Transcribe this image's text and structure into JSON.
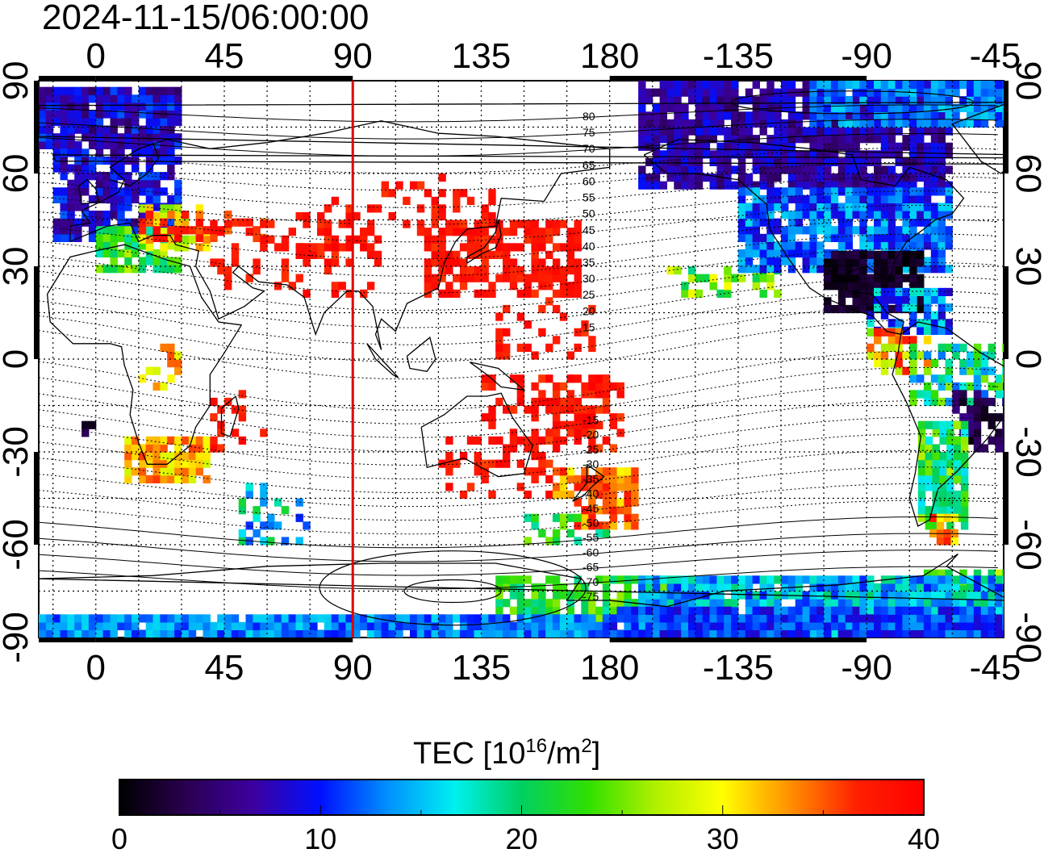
{
  "timestamp": "2024-11-15/06:00:00",
  "axes": {
    "top_lon_ticks": [
      "0",
      "45",
      "90",
      "135",
      "180",
      "-135",
      "-90",
      "-45"
    ],
    "bottom_lon_ticks": [
      "0",
      "45",
      "90",
      "135",
      "180",
      "-135",
      "-90",
      "-45"
    ],
    "left_lat_ticks": [
      "90",
      "60",
      "30",
      "0",
      "-30",
      "-60",
      "-90"
    ],
    "right_lat_ticks": [
      "90",
      "60",
      "30",
      "0",
      "-30",
      "-60",
      "-90"
    ]
  },
  "marker_line": {
    "longitude": 90,
    "color": "#e00000"
  },
  "magnetic_contour_labels": [
    "80",
    "75",
    "70",
    "65",
    "60",
    "55",
    "50",
    "45",
    "40",
    "35",
    "30",
    "25",
    "20",
    "15",
    "-15",
    "-20",
    "-25",
    "-30",
    "-35",
    "-40",
    "-45",
    "-50",
    "-55",
    "-60",
    "-65",
    "-70",
    "-75"
  ],
  "colorbar": {
    "title_main": "TEC  [10",
    "title_sup1": "16",
    "title_mid": "/m",
    "title_sup2": "2",
    "title_end": "]",
    "min": 0,
    "max": 40,
    "tick_labels": [
      "0",
      "10",
      "20",
      "30",
      "40"
    ],
    "colors": [
      "#000000",
      "#2a0050",
      "#3c00a0",
      "#0010ff",
      "#0090ff",
      "#00f0f0",
      "#00d060",
      "#30e000",
      "#b0f000",
      "#ffff00",
      "#ff9000",
      "#ff2000",
      "#ff0000"
    ]
  },
  "chart_data": {
    "type": "heatmap",
    "title": "2024-11-15/06:00:00",
    "x_range": [
      -20,
      318
    ],
    "y_range": [
      -90,
      90
    ],
    "colorbar_range": [
      0,
      40
    ],
    "colorbar_label": "TEC [10^16/m^2]",
    "grid": true
  }
}
